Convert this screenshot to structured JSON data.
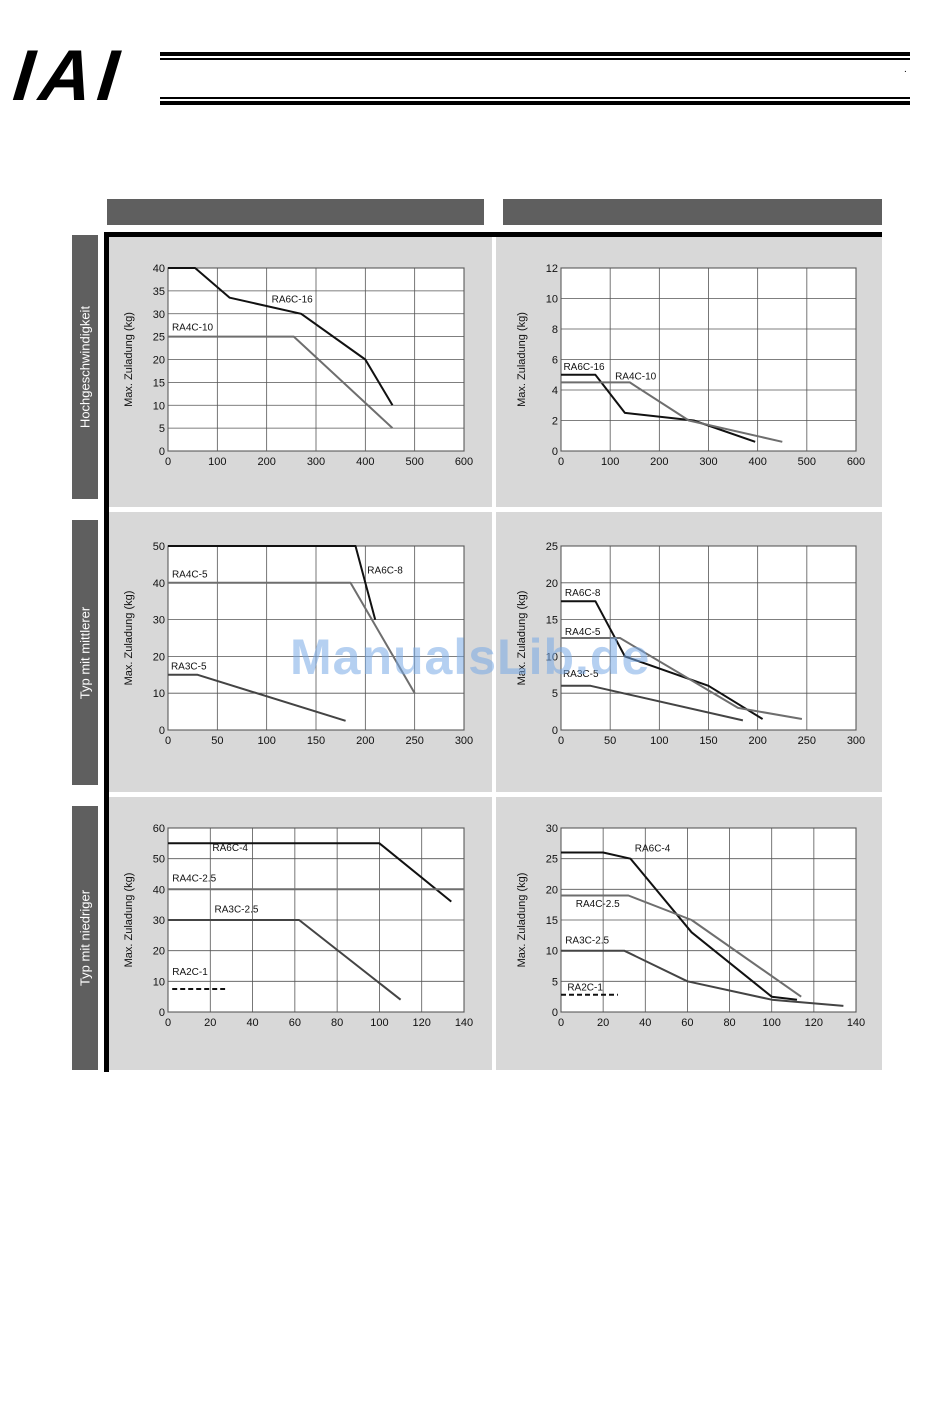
{
  "header": {
    "logo_text": "IAI",
    "dot": "."
  },
  "rows": [
    {
      "label": "Hochgeschwindigkeit"
    },
    {
      "label": "Typ mit mittlerer"
    },
    {
      "label": "Typ mit niedriger"
    }
  ],
  "watermark": "ManualsLib.de",
  "chart_data": [
    {
      "type": "line",
      "ylabel": "Max. Zuladung (kg)",
      "xlim": [
        0,
        600
      ],
      "ylim": [
        0,
        40
      ],
      "xticks": [
        0,
        100,
        200,
        300,
        400,
        500,
        600
      ],
      "yticks": [
        0,
        5,
        10,
        15,
        20,
        25,
        30,
        35,
        40
      ],
      "grid": true,
      "series": [
        {
          "name": "RA6C-16",
          "color": "#111111",
          "dash": false,
          "x": [
            0,
            55,
            125,
            270,
            400,
            455
          ],
          "y": [
            40,
            40,
            33.5,
            30,
            20,
            10
          ]
        },
        {
          "name": "RA4C-10",
          "color": "#6e6e6e",
          "dash": false,
          "x": [
            0,
            255,
            455
          ],
          "y": [
            25,
            25,
            5
          ]
        }
      ],
      "labels": [
        {
          "text": "RA6C-16",
          "x": 210,
          "y": 32.5
        },
        {
          "text": "RA4C-10",
          "x": 8,
          "y": 26.3
        }
      ]
    },
    {
      "type": "line",
      "ylabel": "Max. Zuladung (kg)",
      "xlim": [
        0,
        600
      ],
      "ylim": [
        0,
        12
      ],
      "xticks": [
        0,
        100,
        200,
        300,
        400,
        500,
        600
      ],
      "yticks": [
        0,
        2,
        4,
        6,
        8,
        10,
        12
      ],
      "grid": true,
      "series": [
        {
          "name": "RA6C-16",
          "color": "#111111",
          "dash": false,
          "x": [
            0,
            70,
            130,
            270,
            395
          ],
          "y": [
            5,
            5,
            2.5,
            2,
            0.6
          ]
        },
        {
          "name": "RA4C-10",
          "color": "#6e6e6e",
          "dash": false,
          "x": [
            0,
            140,
            260,
            450
          ],
          "y": [
            4.5,
            4.5,
            2,
            0.6
          ]
        }
      ],
      "labels": [
        {
          "text": "RA6C-16",
          "x": 5,
          "y": 5.3
        },
        {
          "text": "RA4C-10",
          "x": 110,
          "y": 4.7
        }
      ]
    },
    {
      "type": "line",
      "ylabel": "Max. Zuladung (kg)",
      "xlim": [
        0,
        300
      ],
      "ylim": [
        0,
        50
      ],
      "xticks": [
        0,
        50,
        100,
        150,
        200,
        250,
        300
      ],
      "yticks": [
        0,
        10,
        20,
        30,
        40,
        50
      ],
      "grid": true,
      "series": [
        {
          "name": "RA6C-8",
          "color": "#111111",
          "dash": false,
          "x": [
            0,
            190,
            210
          ],
          "y": [
            50,
            50,
            30
          ]
        },
        {
          "name": "RA4C-5",
          "color": "#6e6e6e",
          "dash": false,
          "x": [
            0,
            185,
            250
          ],
          "y": [
            40,
            40,
            10
          ]
        },
        {
          "name": "RA3C-5",
          "color": "#444444",
          "dash": false,
          "x": [
            0,
            30,
            180
          ],
          "y": [
            15,
            15,
            2.5
          ]
        }
      ],
      "labels": [
        {
          "text": "RA6C-8",
          "x": 202,
          "y": 42.5
        },
        {
          "text": "RA4C-5",
          "x": 4,
          "y": 41.5
        },
        {
          "text": "RA3C-5",
          "x": 3,
          "y": 16.5
        }
      ]
    },
    {
      "type": "line",
      "ylabel": "Max. Zuladung (kg)",
      "xlim": [
        0,
        300
      ],
      "ylim": [
        0,
        25
      ],
      "xticks": [
        0,
        50,
        100,
        150,
        200,
        250,
        300
      ],
      "yticks": [
        0,
        5,
        10,
        15,
        20,
        25
      ],
      "grid": true,
      "series": [
        {
          "name": "RA6C-8",
          "color": "#111111",
          "dash": false,
          "x": [
            0,
            35,
            65,
            150,
            205
          ],
          "y": [
            17.5,
            17.5,
            10,
            6,
            1.5
          ]
        },
        {
          "name": "RA4C-5",
          "color": "#6e6e6e",
          "dash": false,
          "x": [
            0,
            60,
            180,
            245
          ],
          "y": [
            12.5,
            12.5,
            3,
            1.5
          ]
        },
        {
          "name": "RA3C-5",
          "color": "#444444",
          "dash": false,
          "x": [
            0,
            30,
            185
          ],
          "y": [
            6,
            6,
            1.3
          ]
        }
      ],
      "labels": [
        {
          "text": "RA6C-8",
          "x": 4,
          "y": 18.2
        },
        {
          "text": "RA4C-5",
          "x": 4,
          "y": 12.9
        },
        {
          "text": "RA3C-5",
          "x": 2,
          "y": 7.2
        }
      ]
    },
    {
      "type": "line",
      "ylabel": "Max. Zuladung (kg)",
      "xlim": [
        0,
        140
      ],
      "ylim": [
        0,
        60
      ],
      "xticks": [
        0,
        20,
        40,
        60,
        80,
        100,
        120,
        140
      ],
      "yticks": [
        0,
        10,
        20,
        30,
        40,
        50,
        60
      ],
      "grid": true,
      "series": [
        {
          "name": "RA6C-4",
          "color": "#111111",
          "dash": false,
          "x": [
            0,
            100,
            134
          ],
          "y": [
            55,
            55,
            36
          ]
        },
        {
          "name": "RA4C-2.5",
          "color": "#6e6e6e",
          "dash": false,
          "x": [
            0,
            140
          ],
          "y": [
            40,
            40
          ]
        },
        {
          "name": "RA3C-2.5",
          "color": "#444444",
          "dash": false,
          "x": [
            0,
            62,
            110
          ],
          "y": [
            30,
            30,
            4
          ]
        },
        {
          "name": "RA2C-1",
          "color": "#111111",
          "dash": true,
          "x": [
            2,
            27
          ],
          "y": [
            7.5,
            7.5
          ]
        }
      ],
      "labels": [
        {
          "text": "RA6C-4",
          "x": 21,
          "y": 52.5
        },
        {
          "text": "RA4C-2.5",
          "x": 2,
          "y": 42.5
        },
        {
          "text": "RA3C-2.5",
          "x": 22,
          "y": 32.5
        },
        {
          "text": "RA2C-1",
          "x": 2,
          "y": 12
        }
      ]
    },
    {
      "type": "line",
      "ylabel": "Max. Zuladung (kg)",
      "xlim": [
        0,
        140
      ],
      "ylim": [
        0,
        30
      ],
      "xticks": [
        0,
        20,
        40,
        60,
        80,
        100,
        120,
        140
      ],
      "yticks": [
        0,
        5,
        10,
        15,
        20,
        25,
        30
      ],
      "grid": true,
      "series": [
        {
          "name": "RA6C-4",
          "color": "#111111",
          "dash": false,
          "x": [
            0,
            20,
            33,
            62,
            100,
            112
          ],
          "y": [
            26,
            26,
            25,
            13,
            2.5,
            2
          ]
        },
        {
          "name": "RA4C-2.5",
          "color": "#6e6e6e",
          "dash": false,
          "x": [
            0,
            32,
            62,
            114
          ],
          "y": [
            19,
            19,
            15,
            2.5
          ]
        },
        {
          "name": "RA3C-2.5",
          "color": "#444444",
          "dash": false,
          "x": [
            0,
            30,
            60,
            100,
            134
          ],
          "y": [
            10,
            10,
            5,
            2,
            1
          ]
        },
        {
          "name": "RA2C-1",
          "color": "#111111",
          "dash": true,
          "x": [
            0,
            27
          ],
          "y": [
            2.8,
            2.8
          ]
        }
      ],
      "labels": [
        {
          "text": "RA6C-4",
          "x": 35,
          "y": 26.2
        },
        {
          "text": "RA4C-2.5",
          "x": 7,
          "y": 17.1
        },
        {
          "text": "RA3C-2.5",
          "x": 2,
          "y": 11.2
        },
        {
          "text": "RA2C-1",
          "x": 3,
          "y": 3.5
        }
      ]
    }
  ]
}
